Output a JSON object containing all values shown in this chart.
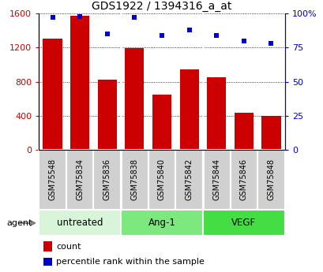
{
  "title": "GDS1922 / 1394316_a_at",
  "samples": [
    "GSM75548",
    "GSM75834",
    "GSM75836",
    "GSM75838",
    "GSM75840",
    "GSM75842",
    "GSM75844",
    "GSM75846",
    "GSM75848"
  ],
  "counts": [
    1310,
    1570,
    820,
    1190,
    650,
    940,
    850,
    430,
    395
  ],
  "percentiles": [
    97,
    98,
    85,
    97,
    84,
    88,
    84,
    80,
    78
  ],
  "groups": [
    {
      "label": "untreated",
      "indices": [
        0,
        1,
        2
      ],
      "color": "#d9f5d9"
    },
    {
      "label": "Ang-1",
      "indices": [
        3,
        4,
        5
      ],
      "color": "#7de87d"
    },
    {
      "label": "VEGF",
      "indices": [
        6,
        7,
        8
      ],
      "color": "#44dd44"
    }
  ],
  "bar_color": "#cc0000",
  "dot_color": "#0000cc",
  "ylim_left": [
    0,
    1600
  ],
  "ylim_right": [
    0,
    100
  ],
  "yticks_left": [
    0,
    400,
    800,
    1200,
    1600
  ],
  "yticks_right": [
    0,
    25,
    50,
    75,
    100
  ],
  "yticklabels_right": [
    "0",
    "25",
    "50",
    "75",
    "100%"
  ],
  "sample_box_color": "#d0d0d0",
  "agent_label": "agent"
}
